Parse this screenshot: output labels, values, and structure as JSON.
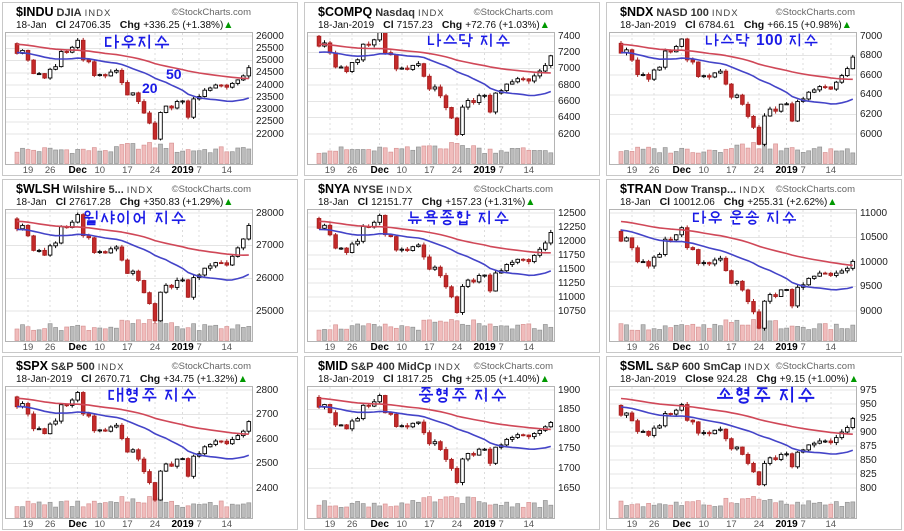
{
  "page": {
    "brand": "©StockCharts.com",
    "up_arrow": "▲",
    "x_axis": [
      {
        "t": "19",
        "i": 2,
        "b": 0
      },
      {
        "t": "26",
        "i": 6,
        "b": 0
      },
      {
        "t": "Dec",
        "i": 11,
        "b": 1
      },
      {
        "t": "10",
        "i": 15,
        "b": 0
      },
      {
        "t": "17",
        "i": 20,
        "b": 0
      },
      {
        "t": "24",
        "i": 25,
        "b": 0
      },
      {
        "t": "2019",
        "i": 30,
        "b": 1
      },
      {
        "t": "7",
        "i": 33,
        "b": 0
      },
      {
        "t": "14",
        "i": 38,
        "b": 0
      }
    ],
    "style": {
      "candle_up_fill": "#ffffff",
      "candle_up_stroke": "#000000",
      "candle_down_fill": "#c52a2a",
      "candle_down_stroke": "#a82020",
      "ma20_color": "#4444c8",
      "ma50_color": "#d04858",
      "vol_up_fill": "#bcbcbc",
      "vol_up_stroke": "#939393",
      "vol_down_fill": "#f0bcbc",
      "vol_down_stroke": "#d89494",
      "grid_color": "#e4e4e4",
      "vgrid_color": "#dcdcdc",
      "border_color": "#b4b4b4",
      "annotation_color": "#1a1ae6",
      "arrow_color": "#009900"
    }
  },
  "chart_data": [
    {
      "type": "candlestick",
      "symbol": "$INDU",
      "name": "DJIA",
      "type_label": "INDX",
      "date": "18-Jan",
      "close_label": "Cl",
      "close": "24706.35",
      "chg_label": "Chg",
      "chg": "+336.25 (+1.38%)",
      "annotation": {
        "text": "다우지수",
        "x": 100,
        "y": 31,
        "size": 16,
        "extras": [
          {
            "text": "50",
            "x": 163,
            "y": 63
          },
          {
            "text": "20",
            "x": 139,
            "y": 77
          }
        ]
      },
      "y_ticks": [
        26000,
        25500,
        25000,
        24500,
        24000,
        23500,
        23000,
        22500,
        22000
      ],
      "axis": [
        22000,
        26000
      ],
      "closes": [
        25289,
        25413,
        25017,
        24465,
        24465,
        24285,
        24640,
        24748,
        25366,
        25338,
        25538,
        25826,
        25027,
        24947,
        24389,
        24423,
        24370,
        24527,
        24597,
        24101,
        23593,
        23676,
        23324,
        22859,
        22445,
        21792,
        22878,
        23138,
        23062,
        23327,
        23346,
        22686,
        23433,
        23531,
        23787,
        23879,
        24002,
        23996,
        23910,
        24065,
        24207,
        24370,
        24706
      ]
    },
    {
      "type": "candlestick",
      "symbol": "$COMPQ",
      "name": "Nasdaq",
      "type_label": "INDX",
      "date": "18-Jan-2019",
      "close_label": "Cl",
      "close": "7157.23",
      "chg_label": "Chg",
      "chg": "+72.76 (+1.03%)",
      "annotation": {
        "text": "나스닥 지수",
        "x": 121,
        "y": 30,
        "size": 15,
        "extras": []
      },
      "y_ticks": [
        7400,
        7200,
        7000,
        6800,
        6600,
        6400,
        6200
      ],
      "axis": [
        6200,
        7400
      ],
      "closes": [
        7276,
        7315,
        7192,
        7021,
        7021,
        6965,
        7075,
        7108,
        7300,
        7291,
        7353,
        7442,
        7195,
        7170,
        6997,
        7007,
        6991,
        7040,
        7061,
        6907,
        6751,
        6776,
        6668,
        6524,
        6395,
        6193,
        6529,
        6610,
        6586,
        6669,
        6674,
        6470,
        6701,
        6731,
        6811,
        6839,
        6877,
        6875,
        6849,
        6912,
        6972,
        7038,
        7157
      ]
    },
    {
      "type": "candlestick",
      "symbol": "$NDX",
      "name": "NASD 100",
      "type_label": "INDX",
      "date": "18-Jan-2019",
      "close_label": "Cl",
      "close": "6784.61",
      "chg_label": "Chg",
      "chg": "+66.15 (+0.98%)",
      "annotation": {
        "text": "나스닥 100 지수",
        "x": 97,
        "y": 30,
        "size": 14.5,
        "extras": []
      },
      "y_ticks": [
        7000,
        6800,
        6600,
        6400,
        6200,
        6000
      ],
      "axis": [
        6000,
        7000
      ],
      "closes": [
        6826,
        6859,
        6754,
        6607,
        6607,
        6559,
        6653,
        6682,
        6847,
        6839,
        6893,
        6969,
        6756,
        6735,
        6587,
        6595,
        6581,
        6623,
        6641,
        6509,
        6375,
        6397,
        6303,
        6180,
        6069,
        5895,
        6184,
        6254,
        6233,
        6304,
        6308,
        6133,
        6332,
        6358,
        6427,
        6450,
        6484,
        6481,
        6459,
        6529,
        6596,
        6667,
        6785
      ]
    },
    {
      "type": "candlestick",
      "symbol": "$WLSH",
      "name": "Wilshire 5...",
      "type_label": "INDX",
      "date": "18-Jan",
      "close_label": "Cl",
      "close": "27617.28",
      "chg_label": "Chg",
      "chg": "+350.83 (+1.29%)",
      "annotation": {
        "text": "윌샤이어 지수",
        "x": 80,
        "y": 30,
        "size": 15.5,
        "extras": []
      },
      "y_ticks": [
        28000,
        27000,
        26000,
        25000
      ],
      "axis": [
        25000,
        28000
      ],
      "closes": [
        27518,
        27619,
        27300,
        26855,
        26855,
        26709,
        26995,
        27082,
        27580,
        27557,
        27719,
        27950,
        27307,
        27242,
        26793,
        26819,
        26777,
        26904,
        26959,
        26559,
        26153,
        26218,
        25935,
        25561,
        25227,
        24700,
        25574,
        25786,
        25724,
        25938,
        25951,
        25422,
        26023,
        26101,
        26309,
        26380,
        26481,
        26475,
        26406,
        26673,
        26932,
        27205,
        27617
      ]
    },
    {
      "type": "candlestick",
      "symbol": "$NYA",
      "name": "NYSE",
      "type_label": "INDX",
      "date": "18-Jan",
      "close_label": "Cl",
      "close": "12151.77",
      "chg_label": "Chg",
      "chg": "+157.23 (+1.31%)",
      "annotation": {
        "text": "뉴욕종합 지수",
        "x": 101,
        "y": 30,
        "size": 15.5,
        "extras": []
      },
      "y_ticks": [
        12500,
        12250,
        12000,
        11750,
        11500,
        11250,
        11000,
        10750
      ],
      "axis": [
        10750,
        12500
      ],
      "closes": [
        12226,
        12280,
        12110,
        11873,
        11873,
        11795,
        11947,
        11994,
        12259,
        12247,
        12334,
        12457,
        12114,
        12079,
        11840,
        11854,
        11831,
        11899,
        11928,
        11715,
        11498,
        11533,
        11382,
        11183,
        11004,
        10723,
        11189,
        11302,
        11269,
        11384,
        11391,
        11108,
        11429,
        11470,
        11581,
        11620,
        11673,
        11670,
        11633,
        11743,
        11851,
        11964,
        12152
      ]
    },
    {
      "type": "candlestick",
      "symbol": "$TRAN",
      "name": "Dow Transp...",
      "type_label": "INDX",
      "date": "18-Jan",
      "close_label": "Cl",
      "close": "10012.06",
      "chg_label": "Chg",
      "chg": "+255.31 (+2.62%)",
      "annotation": {
        "text": "다우 운송 지수",
        "x": 84,
        "y": 30,
        "size": 15,
        "extras": []
      },
      "y_ticks": [
        11000,
        10500,
        10000,
        9500,
        9000
      ],
      "axis": [
        9000,
        11000
      ],
      "closes": [
        10427,
        10491,
        10290,
        10009,
        10009,
        9917,
        10097,
        10153,
        10466,
        10452,
        10555,
        10700,
        10294,
        10253,
        9970,
        9987,
        9960,
        10040,
        10075,
        9823,
        9566,
        9607,
        9429,
        9193,
        8982,
        8650,
        9201,
        9335,
        9296,
        9431,
        9439,
        9105,
        9484,
        9534,
        9665,
        9710,
        9773,
        9769,
        9726,
        9774,
        9819,
        9871,
        10012
      ]
    },
    {
      "type": "candlestick",
      "symbol": "$SPX",
      "name": "S&P 500",
      "type_label": "INDX",
      "date": "18-Jan-2019",
      "close_label": "Cl",
      "close": "2670.71",
      "chg_label": "Chg",
      "chg": "+34.75 (+1.32%)",
      "annotation": {
        "text": "대형주 지수",
        "x": 104,
        "y": 30,
        "size": 16,
        "extras": []
      },
      "y_ticks": [
        2800,
        2700,
        2600,
        2500,
        2400
      ],
      "axis": [
        2400,
        2800
      ],
      "closes": [
        2732,
        2745,
        2702,
        2642,
        2642,
        2622,
        2661,
        2673,
        2740,
        2737,
        2759,
        2790,
        2703,
        2694,
        2634,
        2637,
        2632,
        2649,
        2656,
        2602,
        2547,
        2556,
        2518,
        2467,
        2422,
        2351,
        2469,
        2498,
        2489,
        2518,
        2520,
        2448,
        2530,
        2540,
        2568,
        2578,
        2592,
        2591,
        2581,
        2598,
        2614,
        2632,
        2671
      ]
    },
    {
      "type": "candlestick",
      "symbol": "$MID",
      "name": "S&P 400 MidCp",
      "type_label": "INDX",
      "date": "18-Jan-2019",
      "close_label": "Cl",
      "close": "1817.25",
      "chg_label": "Chg",
      "chg": "+25.05 (+1.40%)",
      "annotation": {
        "text": "중형주 지수",
        "x": 112,
        "y": 30,
        "size": 16,
        "extras": []
      },
      "y_ticks": [
        1900,
        1850,
        1800,
        1750,
        1700,
        1650
      ],
      "axis": [
        1650,
        1900
      ],
      "closes": [
        1856,
        1863,
        1842,
        1811,
        1811,
        1801,
        1821,
        1827,
        1861,
        1859,
        1870,
        1886,
        1842,
        1838,
        1807,
        1809,
        1806,
        1815,
        1818,
        1791,
        1763,
        1768,
        1748,
        1723,
        1700,
        1664,
        1724,
        1738,
        1734,
        1749,
        1749,
        1713,
        1754,
        1760,
        1774,
        1779,
        1786,
        1785,
        1781,
        1789,
        1797,
        1806,
        1817
      ]
    },
    {
      "type": "candlestick",
      "symbol": "$SML",
      "name": "S&P 600 SmCap",
      "type_label": "INDX",
      "date": "18-Jan-2019",
      "close_label": "Close",
      "close": "924.28",
      "chg_label": "Chg",
      "chg": "+9.15 (+1.00%)",
      "annotation": {
        "text": "소형주 지수",
        "x": 108,
        "y": 29,
        "size": 18,
        "extras": []
      },
      "y_ticks": [
        975,
        950,
        925,
        900,
        875,
        850,
        825,
        800
      ],
      "axis": [
        800,
        975
      ],
      "closes": [
        930,
        934,
        920,
        901,
        901,
        894,
        907,
        911,
        933,
        932,
        939,
        949,
        921,
        918,
        898,
        899,
        897,
        903,
        905,
        888,
        870,
        873,
        860,
        844,
        829,
        806,
        844,
        854,
        851,
        860,
        861,
        838,
        864,
        868,
        877,
        880,
        884,
        884,
        881,
        890,
        900,
        908,
        924
      ]
    }
  ]
}
